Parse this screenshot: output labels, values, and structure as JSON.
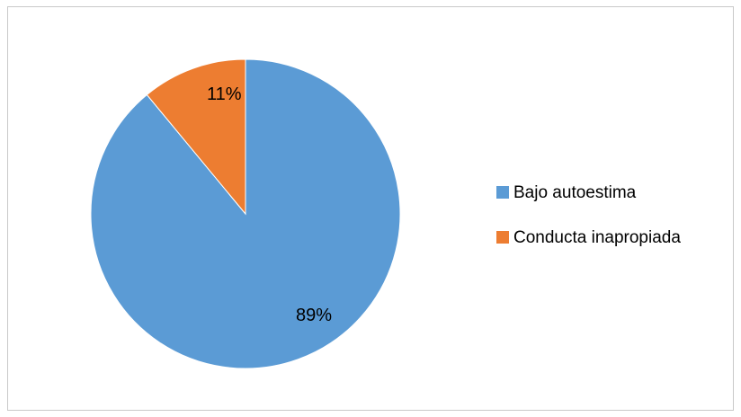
{
  "chart_data": {
    "type": "pie",
    "title": "",
    "categories": [
      "Bajo autoestima",
      "Conducta inapropiada"
    ],
    "values": [
      89,
      11
    ],
    "data_labels": [
      "89%",
      "11%"
    ],
    "colors": [
      "#5B9BD5",
      "#ED7D31"
    ],
    "start_angle_deg": 0,
    "direction": "clockwise",
    "legend_position": "right"
  }
}
